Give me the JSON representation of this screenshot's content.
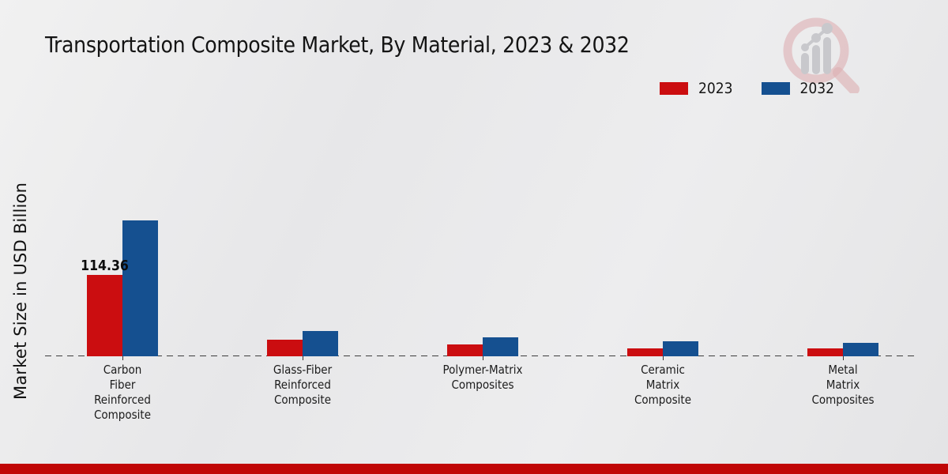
{
  "header": {
    "title": "Transportation Composite Market, By Material, 2023 & 2032",
    "logo_name": "magnifier-bar-chart-watermark-logo"
  },
  "legend": {
    "position": "top-right",
    "items": [
      {
        "label": "2023",
        "color": "#cb0d10"
      },
      {
        "label": "2032",
        "color": "#155090"
      }
    ]
  },
  "y_axis": {
    "label": "Market Size in USD Billion"
  },
  "footer": {
    "bar_color": "#c00606"
  },
  "colors": {
    "series_2023": "#cb0d10",
    "series_2032": "#155090",
    "background": "#e9e9ea",
    "axis_dash": "#3d3d3d",
    "text": "#141414"
  },
  "chart_data": {
    "type": "bar",
    "title": "Transportation Composite Market, By Material, 2023 & 2032",
    "xlabel": "",
    "ylabel": "Market Size in USD Billion",
    "legend_position": "top-right",
    "grid": false,
    "y_axis_ticks_visible": false,
    "baseline_style": "dashed",
    "categories": [
      "Carbon Fiber Reinforced Composite",
      "Glass-Fiber Reinforced Composite",
      "Polymer-Matrix Composites",
      "Ceramic Matrix Composite",
      "Metal Matrix Composites"
    ],
    "category_display": [
      "Carbon\nFiber\nReinforced\nComposite",
      "Glass-Fiber\nReinforced\nComposite",
      "Polymer-Matrix\nComposites",
      "Ceramic\nMatrix\nComposite",
      "Metal\nMatrix\nComposites"
    ],
    "series": [
      {
        "name": "2023",
        "color": "#cb0d10",
        "values": [
          114.36,
          23.4,
          16.6,
          11.1,
          11.1
        ]
      },
      {
        "name": "2032",
        "color": "#155090",
        "values": [
          191.0,
          35.5,
          26.6,
          21.1,
          18.9
        ]
      }
    ],
    "data_labels": [
      {
        "series_index": 0,
        "category_index": 0,
        "text": "114.36"
      }
    ],
    "ylim": [
      0,
      200
    ]
  }
}
